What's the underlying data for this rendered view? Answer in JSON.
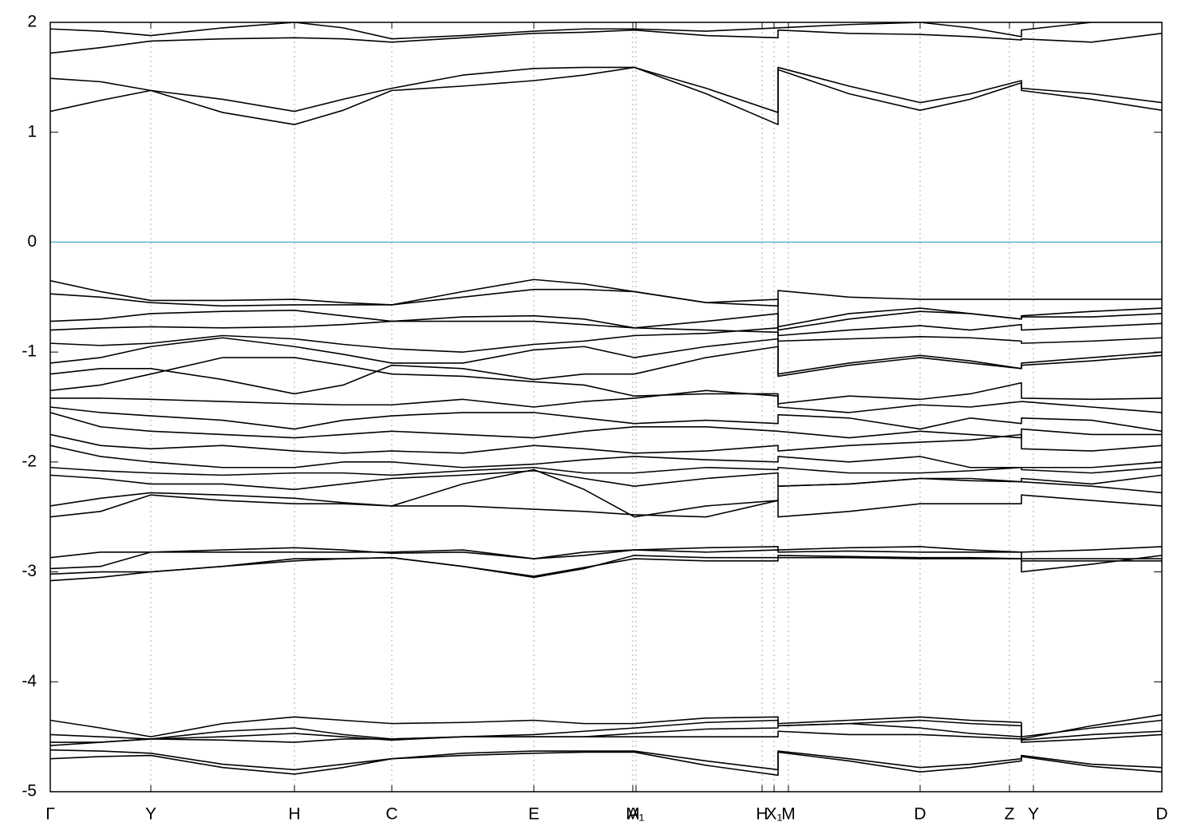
{
  "chart_data": {
    "type": "bands",
    "xlim": [
      0,
      13.93
    ],
    "ylim": [
      -5,
      2
    ],
    "yticks": [
      -5,
      -4,
      -3,
      -2,
      -1,
      0,
      1,
      2
    ],
    "xticks": [
      {
        "value": 0,
        "label": "Γ"
      },
      {
        "value": 1.26,
        "label": "Y"
      },
      {
        "value": 3.06,
        "label": "H"
      },
      {
        "value": 4.28,
        "label": "C"
      },
      {
        "value": 6.06,
        "label": "E"
      },
      {
        "value": 7.3,
        "label": "M"
      },
      {
        "value": 7.34,
        "label": "A₁"
      },
      {
        "value": 8.92,
        "label": "H"
      },
      {
        "value": 9.07,
        "label": "X₁"
      },
      {
        "value": 9.25,
        "label": "M"
      },
      {
        "value": 10.9,
        "label": "D"
      },
      {
        "value": 12.02,
        "label": "Z"
      },
      {
        "value": 12.32,
        "label": "Y"
      },
      {
        "value": 13.93,
        "label": "D"
      }
    ],
    "grid": true,
    "band_color": "#000000",
    "fermi_level": 0,
    "fermi_color": "#5ab4c8",
    "x": [
      0,
      0.63,
      1.26,
      2.16,
      3.06,
      3.67,
      4.28,
      5.17,
      6.06,
      6.69,
      7.32,
      8.22,
      9.12,
      9.12,
      10.01,
      10.9,
      11.53,
      12.17,
      12.17,
      13.05,
      13.93
    ],
    "bands": [
      {
        "values": [
          1.19,
          1.29,
          1.38,
          1.18,
          1.07,
          1.2,
          1.38,
          1.42,
          1.47,
          1.52,
          1.59,
          1.35,
          1.07,
          1.57,
          1.35,
          1.2,
          1.3,
          1.45,
          1.38,
          1.3,
          1.2
        ]
      },
      {
        "values": [
          1.49,
          1.46,
          1.38,
          1.3,
          1.19,
          1.3,
          1.4,
          1.52,
          1.58,
          1.59,
          1.59,
          1.4,
          1.18,
          1.59,
          1.42,
          1.27,
          1.35,
          1.47,
          1.4,
          1.35,
          1.27
        ]
      },
      {
        "values": [
          1.72,
          1.77,
          1.83,
          1.85,
          1.86,
          1.85,
          1.82,
          1.86,
          1.9,
          1.91,
          1.93,
          1.88,
          1.86,
          1.93,
          1.9,
          1.89,
          1.87,
          1.84,
          1.85,
          1.82,
          1.9
        ]
      },
      {
        "values": [
          1.94,
          1.92,
          1.88,
          1.95,
          2.0,
          1.95,
          1.85,
          1.88,
          1.92,
          1.94,
          1.94,
          1.92,
          1.95,
          1.95,
          1.98,
          2.0,
          1.95,
          1.87,
          1.93,
          2.0,
          2.0
        ]
      },
      {
        "values": [
          -0.35,
          -0.45,
          -0.53,
          -0.53,
          -0.52,
          -0.55,
          -0.57,
          -0.45,
          -0.34,
          -0.38,
          -0.45,
          -0.55,
          -0.58,
          -0.44,
          -0.5,
          -0.52,
          -0.52,
          -0.52,
          -0.52,
          -0.52,
          -0.52
        ]
      },
      {
        "values": [
          -0.47,
          -0.5,
          -0.55,
          -0.58,
          -0.57,
          -0.57,
          -0.57,
          -0.5,
          -0.43,
          -0.43,
          -0.45,
          -0.55,
          -0.52,
          -0.77,
          -0.65,
          -0.6,
          -0.65,
          -0.7,
          -0.67,
          -0.63,
          -0.6
        ]
      },
      {
        "values": [
          -0.72,
          -0.7,
          -0.65,
          -0.63,
          -0.62,
          -0.67,
          -0.72,
          -0.68,
          -0.67,
          -0.7,
          -0.78,
          -0.72,
          -0.65,
          -0.8,
          -0.7,
          -0.63,
          -0.65,
          -0.7,
          -0.68,
          -0.68,
          -0.65
        ]
      },
      {
        "values": [
          -0.8,
          -0.78,
          -0.77,
          -0.78,
          -0.77,
          -0.75,
          -0.72,
          -0.72,
          -0.72,
          -0.75,
          -0.78,
          -0.8,
          -0.82,
          -0.85,
          -0.8,
          -0.76,
          -0.8,
          -0.75,
          -0.8,
          -0.77,
          -0.74
        ]
      },
      {
        "values": [
          -0.92,
          -0.94,
          -0.92,
          -0.85,
          -0.88,
          -0.93,
          -0.97,
          -1.0,
          -0.93,
          -0.9,
          -0.85,
          -0.83,
          -0.78,
          -0.9,
          -0.88,
          -0.86,
          -0.87,
          -0.9,
          -0.92,
          -0.9,
          -0.87
        ]
      },
      {
        "values": [
          -1.1,
          -1.05,
          -0.95,
          -0.87,
          -0.95,
          -1.02,
          -1.1,
          -1.1,
          -0.98,
          -0.95,
          -1.05,
          -0.95,
          -0.88,
          -1.2,
          -1.1,
          -1.03,
          -1.08,
          -1.15,
          -1.1,
          -1.05,
          -1.0
        ]
      },
      {
        "values": [
          -1.2,
          -1.15,
          -1.15,
          -1.25,
          -1.38,
          -1.3,
          -1.12,
          -1.15,
          -1.25,
          -1.2,
          -1.2,
          -1.05,
          -0.95,
          -1.22,
          -1.12,
          -1.05,
          -1.1,
          -1.15,
          -1.12,
          -1.08,
          -1.03
        ]
      },
      {
        "values": [
          -1.35,
          -1.3,
          -1.2,
          -1.05,
          -1.05,
          -1.12,
          -1.2,
          -1.22,
          -1.27,
          -1.3,
          -1.4,
          -1.38,
          -1.38,
          -1.47,
          -1.4,
          -1.43,
          -1.38,
          -1.28,
          -1.42,
          -1.43,
          -1.42
        ]
      },
      {
        "values": [
          -1.42,
          -1.42,
          -1.43,
          -1.45,
          -1.47,
          -1.48,
          -1.48,
          -1.43,
          -1.5,
          -1.45,
          -1.42,
          -1.35,
          -1.4,
          -1.5,
          -1.55,
          -1.48,
          -1.5,
          -1.45,
          -1.45,
          -1.5,
          -1.55
        ]
      },
      {
        "values": [
          -1.5,
          -1.55,
          -1.58,
          -1.62,
          -1.7,
          -1.62,
          -1.58,
          -1.55,
          -1.55,
          -1.6,
          -1.65,
          -1.62,
          -1.65,
          -1.57,
          -1.6,
          -1.7,
          -1.6,
          -1.65,
          -1.6,
          -1.62,
          -1.72
        ]
      },
      {
        "values": [
          -1.55,
          -1.68,
          -1.72,
          -1.75,
          -1.78,
          -1.75,
          -1.72,
          -1.75,
          -1.78,
          -1.72,
          -1.68,
          -1.68,
          -1.72,
          -1.72,
          -1.78,
          -1.72,
          -1.75,
          -1.78,
          -1.7,
          -1.75,
          -1.75
        ]
      },
      {
        "values": [
          -1.75,
          -1.85,
          -1.88,
          -1.85,
          -1.9,
          -1.92,
          -1.9,
          -1.92,
          -1.85,
          -1.88,
          -1.92,
          -1.9,
          -1.85,
          -1.9,
          -1.85,
          -1.82,
          -1.8,
          -1.75,
          -1.88,
          -1.9,
          -1.85
        ]
      },
      {
        "values": [
          -1.85,
          -1.95,
          -2.0,
          -2.05,
          -2.05,
          -2.0,
          -2.0,
          -2.05,
          -2.02,
          -1.98,
          -1.95,
          -1.98,
          -2.0,
          -1.95,
          -2.0,
          -1.95,
          -2.05,
          -2.05,
          -2.05,
          -2.05,
          -2.0
        ]
      },
      {
        "values": [
          -2.05,
          -2.08,
          -2.1,
          -2.12,
          -2.1,
          -2.1,
          -2.12,
          -2.08,
          -2.05,
          -2.1,
          -2.1,
          -2.05,
          -2.07,
          -2.05,
          -2.1,
          -2.1,
          -2.08,
          -2.05,
          -2.07,
          -2.1,
          -2.05
        ]
      },
      {
        "values": [
          -2.12,
          -2.15,
          -2.2,
          -2.2,
          -2.25,
          -2.2,
          -2.15,
          -2.12,
          -2.08,
          -2.15,
          -2.22,
          -2.15,
          -2.1,
          -2.22,
          -2.2,
          -2.15,
          -2.15,
          -2.18,
          -2.15,
          -2.2,
          -2.12
        ]
      },
      {
        "values": [
          -2.4,
          -2.33,
          -2.28,
          -2.3,
          -2.33,
          -2.37,
          -2.4,
          -2.2,
          -2.07,
          -2.25,
          -2.5,
          -2.4,
          -2.35,
          -2.22,
          -2.2,
          -2.15,
          -2.17,
          -2.18,
          -2.18,
          -2.22,
          -2.28
        ]
      },
      {
        "values": [
          -2.5,
          -2.45,
          -2.3,
          -2.35,
          -2.38,
          -2.38,
          -2.4,
          -2.4,
          -2.43,
          -2.45,
          -2.48,
          -2.5,
          -2.35,
          -2.5,
          -2.45,
          -2.38,
          -2.38,
          -2.38,
          -2.3,
          -2.35,
          -2.4
        ]
      },
      {
        "values": [
          -2.87,
          -2.82,
          -2.82,
          -2.8,
          -2.78,
          -2.8,
          -2.83,
          -2.82,
          -2.88,
          -2.85,
          -2.8,
          -2.78,
          -2.77,
          -2.8,
          -2.78,
          -2.77,
          -2.8,
          -2.82,
          -2.82,
          -2.8,
          -2.77
        ]
      },
      {
        "values": [
          -2.97,
          -2.95,
          -2.82,
          -2.82,
          -2.82,
          -2.82,
          -2.82,
          -2.8,
          -2.88,
          -2.82,
          -2.8,
          -2.82,
          -2.8,
          -2.82,
          -2.81,
          -2.82,
          -2.82,
          -2.82,
          -3.0,
          -2.93,
          -2.85
        ]
      },
      {
        "values": [
          -3.02,
          -3.0,
          -3.0,
          -2.95,
          -2.88,
          -2.88,
          -2.87,
          -2.95,
          -3.05,
          -2.97,
          -2.85,
          -2.87,
          -2.87,
          -2.85,
          -2.86,
          -2.87,
          -2.87,
          -2.88,
          -2.9,
          -2.9,
          -2.9
        ]
      },
      {
        "values": [
          -3.08,
          -3.05,
          -3.0,
          -2.95,
          -2.9,
          -2.88,
          -2.87,
          -2.95,
          -3.04,
          -2.96,
          -2.88,
          -2.9,
          -2.9,
          -2.87,
          -2.87,
          -2.88,
          -2.88,
          -2.88,
          -2.88,
          -2.88,
          -2.88
        ]
      },
      {
        "values": [
          -4.35,
          -4.42,
          -4.5,
          -4.38,
          -4.32,
          -4.35,
          -4.38,
          -4.37,
          -4.35,
          -4.38,
          -4.38,
          -4.33,
          -4.32,
          -4.38,
          -4.35,
          -4.32,
          -4.35,
          -4.37,
          -4.52,
          -4.4,
          -4.3
        ]
      },
      {
        "values": [
          -4.48,
          -4.5,
          -4.52,
          -4.45,
          -4.42,
          -4.48,
          -4.52,
          -4.5,
          -4.48,
          -4.45,
          -4.42,
          -4.37,
          -4.35,
          -4.4,
          -4.38,
          -4.35,
          -4.38,
          -4.4,
          -4.5,
          -4.42,
          -4.35
        ]
      },
      {
        "values": [
          -4.55,
          -4.55,
          -4.52,
          -4.5,
          -4.47,
          -4.5,
          -4.53,
          -4.5,
          -4.5,
          -4.5,
          -4.47,
          -4.43,
          -4.42,
          -4.4,
          -4.38,
          -4.42,
          -4.47,
          -4.5,
          -4.53,
          -4.48,
          -4.45
        ]
      },
      {
        "values": [
          -4.58,
          -4.55,
          -4.52,
          -4.53,
          -4.55,
          -4.52,
          -4.52,
          -4.5,
          -4.5,
          -4.5,
          -4.5,
          -4.5,
          -4.5,
          -4.45,
          -4.48,
          -4.48,
          -4.5,
          -4.52,
          -4.55,
          -4.52,
          -4.48
        ]
      },
      {
        "values": [
          -4.62,
          -4.63,
          -4.65,
          -4.75,
          -4.8,
          -4.75,
          -4.7,
          -4.65,
          -4.63,
          -4.63,
          -4.63,
          -4.72,
          -4.8,
          -4.63,
          -4.7,
          -4.78,
          -4.75,
          -4.7,
          -4.67,
          -4.75,
          -4.78
        ]
      },
      {
        "values": [
          -4.7,
          -4.68,
          -4.67,
          -4.78,
          -4.84,
          -4.78,
          -4.7,
          -4.67,
          -4.65,
          -4.64,
          -4.64,
          -4.76,
          -4.85,
          -4.64,
          -4.72,
          -4.82,
          -4.78,
          -4.72,
          -4.68,
          -4.77,
          -4.82
        ]
      }
    ]
  }
}
